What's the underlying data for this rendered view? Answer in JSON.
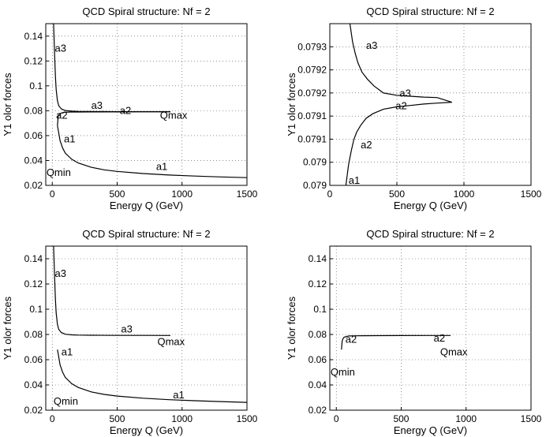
{
  "figure_title": "QCD Spiral structure: Nf = 2",
  "chart_data": [
    {
      "type": "line",
      "title": "QCD Spiral structure: Nf = 2",
      "xlabel": "Energy Q (GeV)",
      "ylabel": "Y1 olor forces",
      "xlim": [
        -50,
        1500
      ],
      "ylim": [
        0.02,
        0.15
      ],
      "xticks": [
        0,
        500,
        1000,
        1500
      ],
      "yticks": [
        0.02,
        0.04,
        0.06,
        0.08,
        0.1,
        0.12,
        0.14
      ],
      "xtick_labels": [
        "0",
        "500",
        "1000",
        "1500"
      ],
      "ytick_labels": [
        "0.02",
        "0.04",
        "0.06",
        "0.08",
        "0.1",
        "0.12",
        "0.14"
      ],
      "grid": true,
      "series": [
        {
          "name": "a3",
          "x": [
            10,
            15,
            20,
            25,
            30,
            40,
            50,
            70,
            100,
            150,
            200,
            300,
            500,
            700,
            910
          ],
          "y": [
            0.15,
            0.135,
            0.12,
            0.107,
            0.097,
            0.088,
            0.084,
            0.0815,
            0.0802,
            0.0797,
            0.0795,
            0.0794,
            0.07925,
            0.07922,
            0.0792
          ]
        },
        {
          "name": "a2",
          "x": [
            40,
            45,
            50,
            60,
            80,
            100,
            150,
            200,
            300,
            500,
            700,
            910
          ],
          "y": [
            0.068,
            0.0745,
            0.0765,
            0.0778,
            0.0785,
            0.0788,
            0.07895,
            0.079,
            0.07905,
            0.07912,
            0.07916,
            0.0792
          ]
        },
        {
          "name": "a1",
          "x": [
            40,
            50,
            60,
            80,
            100,
            150,
            200,
            300,
            400,
            500,
            700,
            900,
            1100,
            1300,
            1500
          ],
          "y": [
            0.068,
            0.062,
            0.056,
            0.05,
            0.046,
            0.041,
            0.038,
            0.0345,
            0.0325,
            0.0312,
            0.0295,
            0.0283,
            0.0275,
            0.0268,
            0.0262
          ]
        }
      ],
      "annotations": [
        {
          "text": "a3",
          "x": 20,
          "y": 0.1275
        },
        {
          "text": "a3",
          "x": 300,
          "y": 0.0815
        },
        {
          "text": "a2",
          "x": 30,
          "y": 0.0735
        },
        {
          "text": "a2",
          "x": 520,
          "y": 0.0775
        },
        {
          "text": "Qmax",
          "x": 830,
          "y": 0.0735
        },
        {
          "text": "a1",
          "x": 90,
          "y": 0.0545
        },
        {
          "text": "a1",
          "x": 800,
          "y": 0.0325
        },
        {
          "text": "Qmin",
          "x": -45,
          "y": 0.0275
        }
      ]
    },
    {
      "type": "line",
      "title": "QCD Spiral structure: Nf = 2",
      "xlabel": "Energy Q (GeV)",
      "ylabel": "Y1 olor forces",
      "xlim": [
        0,
        1500
      ],
      "ylim": [
        0.079,
        0.07935
      ],
      "xticks": [
        0,
        500,
        1000,
        1500
      ],
      "yticks": [
        0.079,
        0.07905,
        0.0791,
        0.07915,
        0.0792,
        0.07925,
        0.0793
      ],
      "xtick_labels": [
        "0",
        "500",
        "1000",
        "1500"
      ],
      "ytick_labels": [
        "0.079",
        "0.079",
        "0.0791",
        "0.0791",
        "0.0792",
        "0.0792",
        "0.0793"
      ],
      "grid": true,
      "series": [
        {
          "name": "a3",
          "x": [
            150,
            170,
            190,
            210,
            240,
            280,
            330,
            400,
            500,
            600,
            700,
            800,
            910
          ],
          "y": [
            0.07935,
            0.07931,
            0.079285,
            0.079265,
            0.079245,
            0.07923,
            0.079215,
            0.0792,
            0.079195,
            0.079193,
            0.079191,
            0.07919,
            0.07918
          ]
        },
        {
          "name": "a2",
          "x": [
            120,
            140,
            160,
            180,
            200,
            230,
            270,
            320,
            400,
            500,
            600,
            700,
            800,
            910
          ],
          "y": [
            0.079,
            0.079045,
            0.079075,
            0.0791,
            0.079115,
            0.07913,
            0.079145,
            0.079155,
            0.079165,
            0.07917,
            0.079173,
            0.079176,
            0.079178,
            0.07918
          ]
        }
      ],
      "annotations": [
        {
          "text": "a3",
          "x": 270,
          "y": 0.079295
        },
        {
          "text": "a3",
          "x": 520,
          "y": 0.079192
        },
        {
          "text": "a2",
          "x": 490,
          "y": 0.079165
        },
        {
          "text": "a2",
          "x": 230,
          "y": 0.07908
        },
        {
          "text": "a1",
          "x": 140,
          "y": 0.079003
        }
      ]
    },
    {
      "type": "line",
      "title": "QCD Spiral structure: Nf = 2",
      "xlabel": "Energy Q (GeV)",
      "ylabel": "Y1 olor forces",
      "xlim": [
        -50,
        1500
      ],
      "ylim": [
        0.02,
        0.15
      ],
      "xticks": [
        0,
        500,
        1000,
        1500
      ],
      "yticks": [
        0.02,
        0.04,
        0.06,
        0.08,
        0.1,
        0.12,
        0.14
      ],
      "xtick_labels": [
        "0",
        "500",
        "1000",
        "1500"
      ],
      "ytick_labels": [
        "0.02",
        "0.04",
        "0.06",
        "0.08",
        "0.1",
        "0.12",
        "0.14"
      ],
      "grid": true,
      "series": [
        {
          "name": "a3",
          "x": [
            10,
            15,
            20,
            25,
            30,
            40,
            50,
            70,
            100,
            150,
            200,
            300,
            500,
            700,
            910
          ],
          "y": [
            0.15,
            0.135,
            0.12,
            0.107,
            0.097,
            0.088,
            0.084,
            0.0815,
            0.0802,
            0.0797,
            0.0795,
            0.0794,
            0.07925,
            0.07922,
            0.0792
          ]
        },
        {
          "name": "a1",
          "x": [
            40,
            50,
            60,
            80,
            100,
            150,
            200,
            300,
            400,
            500,
            700,
            900,
            1100,
            1300,
            1500
          ],
          "y": [
            0.068,
            0.062,
            0.056,
            0.05,
            0.046,
            0.041,
            0.038,
            0.0345,
            0.0325,
            0.0312,
            0.0295,
            0.0283,
            0.0275,
            0.0268,
            0.0262
          ]
        }
      ],
      "annotations": [
        {
          "text": "a3",
          "x": 20,
          "y": 0.1255
        },
        {
          "text": "a3",
          "x": 530,
          "y": 0.0815
        },
        {
          "text": "Qmax",
          "x": 810,
          "y": 0.0715
        },
        {
          "text": "a1",
          "x": 70,
          "y": 0.0635
        },
        {
          "text": "a1",
          "x": 930,
          "y": 0.0295
        },
        {
          "text": "Qmin",
          "x": 10,
          "y": 0.0245
        }
      ]
    },
    {
      "type": "line",
      "title": "QCD Spiral structure: Nf = 2",
      "xlabel": "Energy Q (GeV)",
      "ylabel": "Y1 olor forces",
      "xlim": [
        -50,
        1500
      ],
      "ylim": [
        0.02,
        0.15
      ],
      "xticks": [
        0,
        500,
        1000,
        1500
      ],
      "yticks": [
        0.02,
        0.04,
        0.06,
        0.08,
        0.1,
        0.12,
        0.14
      ],
      "xtick_labels": [
        "0",
        "500",
        "1000",
        "1500"
      ],
      "ytick_labels": [
        "0.02",
        "0.04",
        "0.06",
        "0.08",
        "0.1",
        "0.12",
        "0.14"
      ],
      "grid": true,
      "series": [
        {
          "name": "a2",
          "x": [
            40,
            45,
            50,
            60,
            80,
            100,
            150,
            200,
            300,
            500,
            700,
            880
          ],
          "y": [
            0.068,
            0.0745,
            0.0765,
            0.0778,
            0.0785,
            0.0788,
            0.07895,
            0.079,
            0.07905,
            0.07912,
            0.07916,
            0.0792
          ]
        }
      ],
      "annotations": [
        {
          "text": "a2",
          "x": 70,
          "y": 0.0735
        },
        {
          "text": "a2",
          "x": 750,
          "y": 0.0745
        },
        {
          "text": "Qmax",
          "x": 800,
          "y": 0.0635
        },
        {
          "text": "Qmin",
          "x": -45,
          "y": 0.0475
        }
      ]
    }
  ]
}
